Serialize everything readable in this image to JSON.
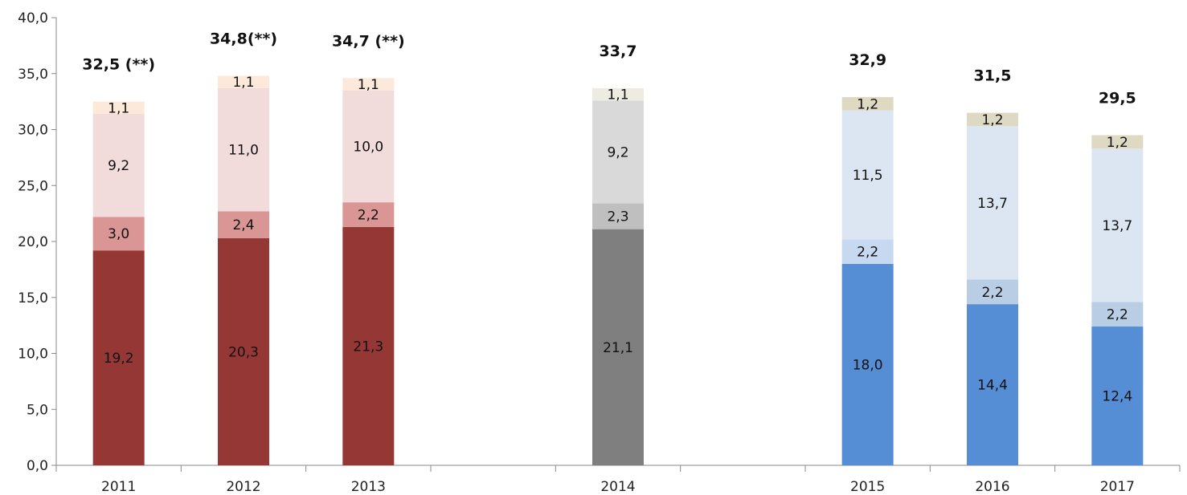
{
  "chart_data": {
    "type": "bar",
    "stacked": true,
    "title": "",
    "xlabel": "",
    "ylabel": "",
    "ylim": [
      0,
      40
    ],
    "y_ticks": [
      "0,0",
      "5,0",
      "10,0",
      "15,0",
      "20,0",
      "25,0",
      "30,0",
      "35,0",
      "40,0"
    ],
    "grid": false,
    "legend": "none",
    "categories": [
      "2011",
      "2012",
      "2013",
      "",
      "2014",
      "",
      "2015",
      "2016",
      "2017"
    ],
    "bars": [
      {
        "x": "2011",
        "total_label": "32,5 (**)",
        "segments": [
          {
            "value": 19.2,
            "label": "19,2",
            "color": "#953735"
          },
          {
            "value": 3.0,
            "label": "3,0",
            "color": "#d99694"
          },
          {
            "value": 9.2,
            "label": "9,2",
            "color": "#f2dcdb"
          },
          {
            "value": 1.1,
            "label": "1,1",
            "color": "#fde9d9"
          }
        ]
      },
      {
        "x": "2012",
        "total_label": "34,8(**)",
        "segments": [
          {
            "value": 20.3,
            "label": "20,3",
            "color": "#953735"
          },
          {
            "value": 2.4,
            "label": "2,4",
            "color": "#d99694"
          },
          {
            "value": 11.0,
            "label": "11,0",
            "color": "#f2dcdb"
          },
          {
            "value": 1.1,
            "label": "1,1",
            "color": "#fde9d9"
          }
        ]
      },
      {
        "x": "2013",
        "total_label": "34,7 (**)",
        "segments": [
          {
            "value": 21.3,
            "label": "21,3",
            "color": "#953735"
          },
          {
            "value": 2.2,
            "label": "2,2",
            "color": "#d99694"
          },
          {
            "value": 10.0,
            "label": "10,0",
            "color": "#f2dcdb"
          },
          {
            "value": 1.1,
            "label": "1,1",
            "color": "#fde9d9"
          }
        ]
      },
      {
        "x": "2014",
        "total_label": "33,7",
        "segments": [
          {
            "value": 21.1,
            "label": "21,1",
            "color": "#7f7f7f"
          },
          {
            "value": 2.3,
            "label": "2,3",
            "color": "#bfbfbf"
          },
          {
            "value": 9.2,
            "label": "9,2",
            "color": "#d9d9d9"
          },
          {
            "value": 1.1,
            "label": "1,1",
            "color": "#eeece1"
          }
        ]
      },
      {
        "x": "2015",
        "total_label": "32,9",
        "segments": [
          {
            "value": 18.0,
            "label": "18,0",
            "color": "#558ed5"
          },
          {
            "value": 2.2,
            "label": "2,2",
            "color": "#c6d9f1"
          },
          {
            "value": 11.5,
            "label": "11,5",
            "color": "#dce6f2"
          },
          {
            "value": 1.2,
            "label": "1,2",
            "color": "#ddd9c3"
          }
        ]
      },
      {
        "x": "2016",
        "total_label": "31,5",
        "segments": [
          {
            "value": 14.4,
            "label": "14,4",
            "color": "#558ed5"
          },
          {
            "value": 2.2,
            "label": "2,2",
            "color": "#b9cde5"
          },
          {
            "value": 13.7,
            "label": "13,7",
            "color": "#dce6f2"
          },
          {
            "value": 1.2,
            "label": "1,2",
            "color": "#ddd9c3"
          }
        ]
      },
      {
        "x": "2017",
        "total_label": "29,5",
        "segments": [
          {
            "value": 12.4,
            "label": "12,4",
            "color": "#558ed5"
          },
          {
            "value": 2.2,
            "label": "2,2",
            "color": "#b9cde5"
          },
          {
            "value": 13.7,
            "label": "13,7",
            "color": "#dce6f2"
          },
          {
            "value": 1.2,
            "label": "1,2",
            "color": "#ddd9c3"
          }
        ]
      }
    ]
  }
}
